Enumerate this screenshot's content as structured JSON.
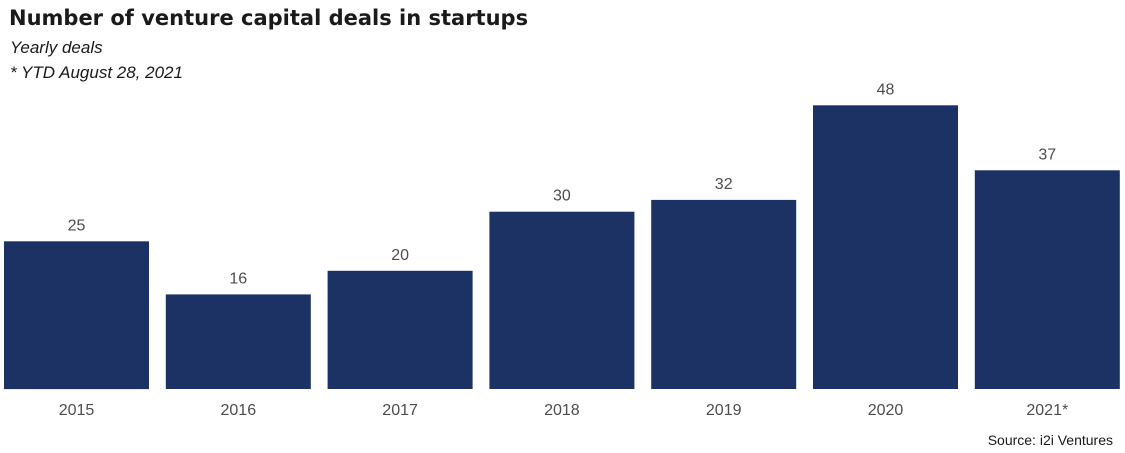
{
  "chart_data": {
    "type": "bar",
    "title": "Number of venture capital deals in startups",
    "subtitle": "Yearly deals",
    "note": "* YTD August 28, 2021",
    "source": "Source: i2i Ventures",
    "categories": [
      "2015",
      "2016",
      "2017",
      "2018",
      "2019",
      "2020",
      "2021*"
    ],
    "values": [
      25,
      16,
      20,
      30,
      32,
      48,
      37
    ],
    "ylim": [
      0,
      50
    ],
    "grid": false,
    "bar_color": "#1c3264"
  }
}
